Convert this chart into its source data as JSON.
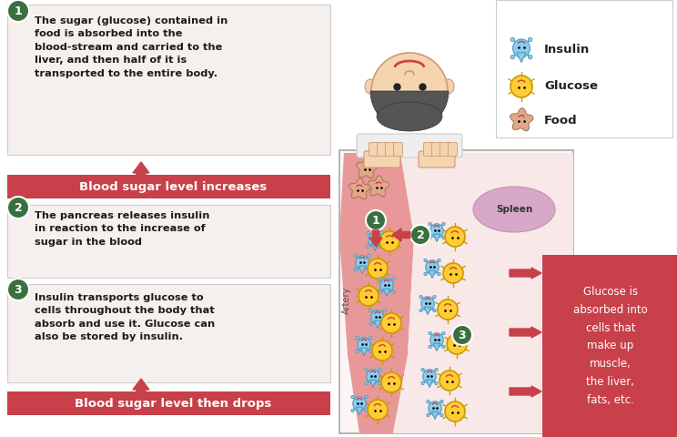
{
  "bg_color": "#ffffff",
  "step1_text": "The sugar (glucose) contained in\nfood is absorbed into the\nblood-stream and carried to the\nliver, and then half of it is\ntransported to the entire body.",
  "step2_text": "The pancreas releases insulin\nin reaction to the increase of\nsugar in the blood",
  "step3_text": "Insulin transports glucose to\ncells throughout the body that\nabsorb and use it. Glucose can\nalso be stored by insulin.",
  "banner1_text": "Blood sugar level increases",
  "banner2_text": "Blood sugar level then drops",
  "right_box_text": "Glucose is\nabsorbed into\ncells that\nmake up\nmuscle,\nthe liver,\nfats, etc.",
  "spleen_text": "Spleen",
  "artery_text": "Artery",
  "legend_items": [
    "Insulin",
    "Glucose",
    "Food"
  ],
  "banner_color": "#c8404a",
  "banner_text_color": "#ffffff",
  "circle_color": "#3a7040",
  "circle_text_color": "#ffffff",
  "right_box_color": "#c8404a",
  "right_box_text_color": "#ffffff",
  "artery_fill": "#e89898",
  "tissue_fill": "#f8e8e8",
  "spleen_fill": "#d8a8c8",
  "box_fill": "#f5f0ee",
  "box_edge": "#cccccc",
  "center_bg": "#fdf5f5",
  "center_edge": "#aaaaaa",
  "insulin_face": "#88ccee",
  "insulin_edge": "#5599bb",
  "glucose_face": "#ffcc33",
  "glucose_edge": "#cc9900",
  "food_face": "#e0a888",
  "food_edge": "#b07755",
  "smile_color": "#cc3333",
  "hair_color": "#555555",
  "skin_color": "#f5d5b0",
  "skin_edge": "#cc9977"
}
